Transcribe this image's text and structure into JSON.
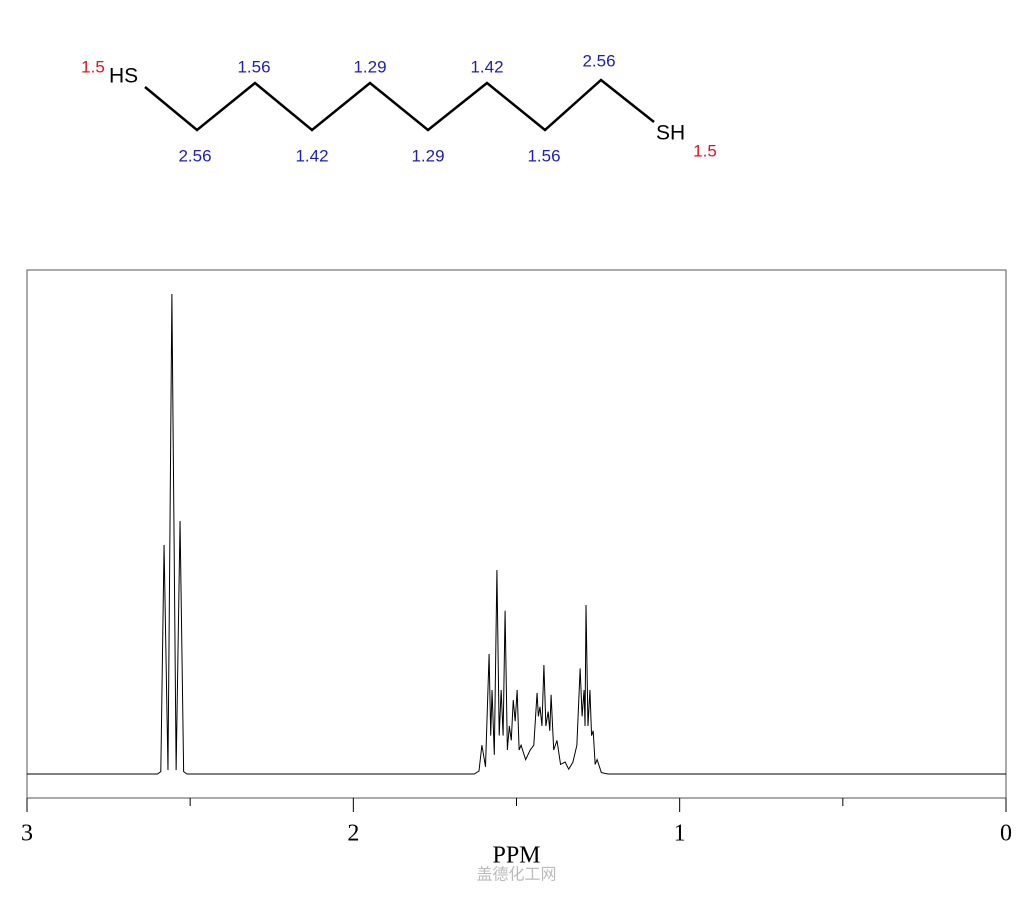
{
  "molecule": {
    "groups": [
      "HS",
      "SH"
    ],
    "shifts": [
      "1.5",
      "1.56",
      "1.29",
      "1.42",
      "2.56",
      "2.56",
      "1.42",
      "1.29",
      "1.56",
      "1.5"
    ]
  },
  "chart_data": {
    "type": "line",
    "xlabel": "PPM",
    "watermark": "盖德化工网",
    "x": [
      3.0,
      2.6,
      2.59,
      2.58,
      2.568,
      2.556,
      2.543,
      2.531,
      2.52,
      2.51,
      1.63,
      1.615,
      1.606,
      1.595,
      1.584,
      1.579,
      1.575,
      1.568,
      1.56,
      1.553,
      1.547,
      1.541,
      1.535,
      1.528,
      1.522,
      1.516,
      1.51,
      1.504,
      1.498,
      1.492,
      1.486,
      1.472,
      1.458,
      1.447,
      1.437,
      1.433,
      1.428,
      1.422,
      1.416,
      1.41,
      1.403,
      1.398,
      1.394,
      1.386,
      1.376,
      1.365,
      1.351,
      1.34,
      1.327,
      1.315,
      1.305,
      1.299,
      1.293,
      1.29,
      1.287,
      1.281,
      1.275,
      1.27,
      1.265,
      1.259,
      1.253,
      1.24,
      1.22,
      0
    ],
    "values": [
      0,
      0,
      0.5,
      47.7,
      0.8,
      100,
      0.8,
      52.7,
      0.5,
      0,
      0,
      0.6,
      6,
      1.5,
      25,
      8,
      17.5,
      4,
      42.5,
      8,
      17.5,
      8,
      34,
      5,
      10,
      7,
      15.4,
      11,
      17.5,
      5,
      6,
      3,
      5,
      6,
      16.9,
      12,
      14,
      10,
      22.7,
      10,
      13,
      9,
      16.5,
      5,
      7,
      2,
      2.5,
      1,
      2.5,
      6,
      22,
      12,
      17.5,
      10,
      35.2,
      10,
      17.5,
      8,
      9,
      2,
      3,
      0.3,
      0,
      0
    ],
    "color": "#000000",
    "xlim": [
      3,
      0
    ],
    "xticks": [
      3,
      2,
      1,
      0
    ],
    "xminorticks": [
      2.5,
      1.5,
      0.5
    ],
    "ylim": [
      -5,
      105
    ]
  }
}
